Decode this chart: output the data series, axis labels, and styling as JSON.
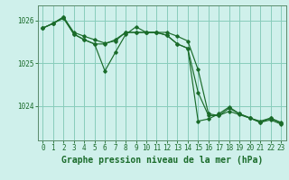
{
  "background_color": "#cff0eb",
  "plot_bg_color": "#cff0eb",
  "grid_color": "#88ccbb",
  "line_color": "#1a6b2a",
  "marker_color": "#1a6b2a",
  "xlabel": "Graphe pression niveau de la mer (hPa)",
  "ylim": [
    1023.2,
    1026.35
  ],
  "xlim": [
    -0.5,
    23.5
  ],
  "yticks": [
    1024,
    1025,
    1026
  ],
  "xticks": [
    0,
    1,
    2,
    3,
    4,
    5,
    6,
    7,
    8,
    9,
    10,
    11,
    12,
    13,
    14,
    15,
    16,
    17,
    18,
    19,
    20,
    21,
    22,
    23
  ],
  "series1_x": [
    0,
    1,
    2,
    3,
    4,
    5,
    6,
    7,
    8,
    9,
    10,
    11,
    12,
    13,
    14,
    15,
    16,
    17,
    18,
    19,
    20,
    21,
    22,
    23
  ],
  "series1_y": [
    1025.82,
    1025.93,
    1026.08,
    1025.72,
    1025.63,
    1025.55,
    1025.47,
    1025.52,
    1025.72,
    1025.72,
    1025.72,
    1025.72,
    1025.72,
    1025.63,
    1025.52,
    1024.85,
    1023.82,
    1023.78,
    1023.88,
    1023.8,
    1023.72,
    1023.65,
    1023.72,
    1023.62
  ],
  "series2_x": [
    0,
    1,
    2,
    3,
    4,
    5,
    6,
    7,
    8,
    9,
    10,
    11,
    12,
    13,
    14,
    15,
    16,
    17,
    18,
    19,
    20,
    21,
    22,
    23
  ],
  "series2_y": [
    1025.82,
    1025.93,
    1026.05,
    1025.68,
    1025.55,
    1025.45,
    1024.82,
    1025.25,
    1025.67,
    1025.85,
    1025.72,
    1025.72,
    1025.65,
    1025.45,
    1025.35,
    1024.32,
    1023.78,
    1023.78,
    1023.95,
    1023.82,
    1023.73,
    1023.62,
    1023.72,
    1023.6
  ],
  "series3_x": [
    0,
    1,
    2,
    3,
    4,
    5,
    6,
    7,
    8,
    9,
    10,
    11,
    12,
    13,
    14,
    15,
    16,
    17,
    18,
    19,
    20,
    21,
    22,
    23
  ],
  "series3_y": [
    1025.82,
    1025.93,
    1026.08,
    1025.68,
    1025.55,
    1025.45,
    1025.45,
    1025.55,
    1025.72,
    1025.72,
    1025.72,
    1025.72,
    1025.65,
    1025.45,
    1025.35,
    1023.65,
    1023.7,
    1023.82,
    1023.98,
    1023.82,
    1023.72,
    1023.62,
    1023.68,
    1023.58
  ],
  "tick_fontsize": 5.5,
  "xlabel_fontsize": 7.0,
  "tick_color": "#1a6b2a",
  "axis_color": "#5a8a6a"
}
